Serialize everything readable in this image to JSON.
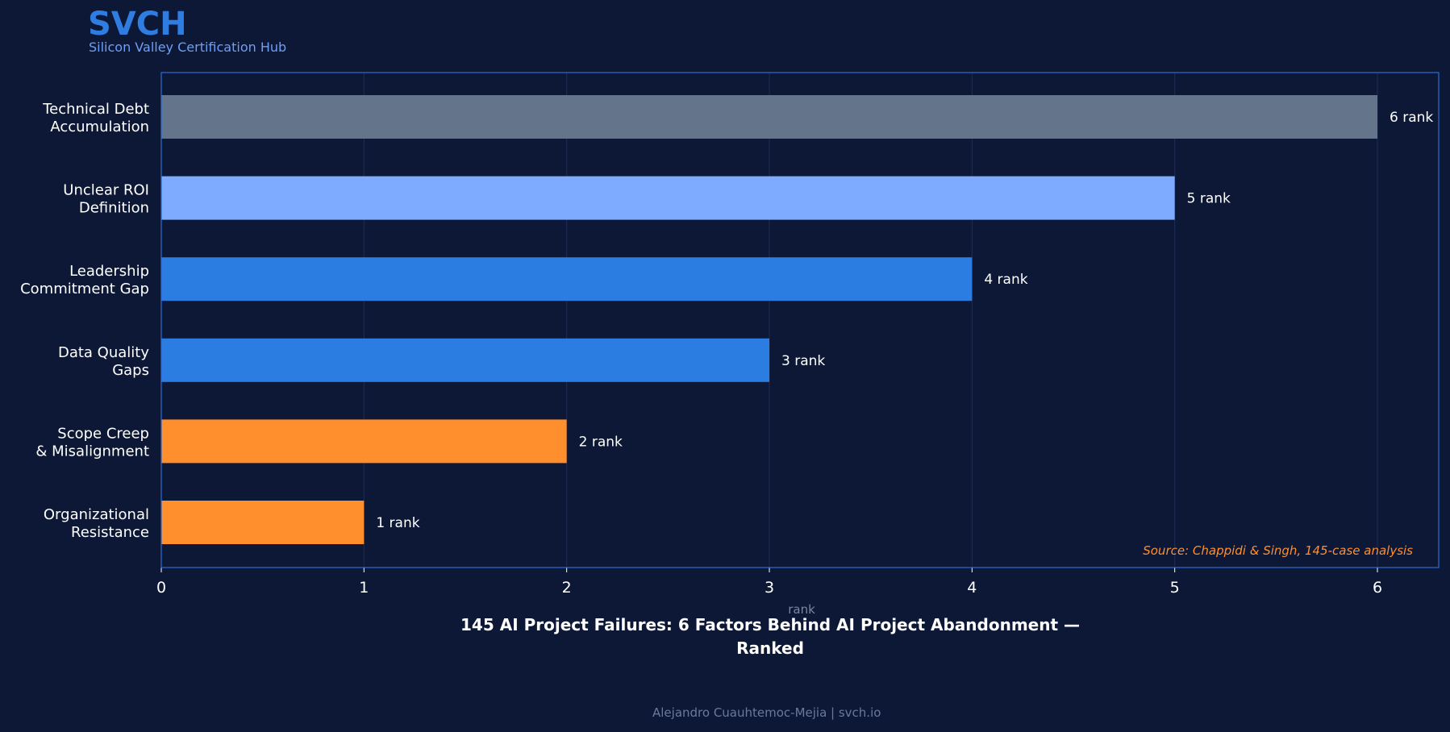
{
  "brand": {
    "name": "SVCH",
    "tagline": "Silicon Valley Certification Hub"
  },
  "footer": {
    "text": "Alejandro Cuauhtemoc-Mejia  |  svch.io"
  },
  "chart_data": {
    "type": "bar",
    "orientation": "horizontal",
    "title": "145 AI Project Failures: 6 Factors Behind AI Project Abandonment —\nRanked",
    "xlabel": "rank",
    "ylabel": "",
    "xlim": [
      0,
      6.3
    ],
    "xticks": [
      0,
      1,
      2,
      3,
      4,
      5,
      6
    ],
    "grid": "vertical",
    "annotation": "Source: Chappidi & Singh, 145-case analysis",
    "categories": [
      [
        "Technical Debt",
        "Accumulation"
      ],
      [
        "Unclear ROI",
        "Definition"
      ],
      [
        "Leadership",
        "Commitment Gap"
      ],
      [
        "Data Quality",
        "Gaps"
      ],
      [
        "Scope Creep",
        "& Misalignment"
      ],
      [
        "Organizational",
        "Resistance"
      ]
    ],
    "values": [
      6,
      5,
      4,
      3,
      2,
      1
    ],
    "value_labels": [
      "6 rank",
      "5 rank",
      "4 rank",
      "3 rank",
      "2 rank",
      "1 rank"
    ],
    "colors": [
      "#64748b",
      "#7eabff",
      "#2b7de1",
      "#2b7de1",
      "#ff8f2d",
      "#ff8f2d"
    ]
  },
  "colors": {
    "background": "#0c1836",
    "brand": "#2f7de1",
    "frame": "#2f6bd1",
    "grid": "#1f2d52",
    "annotation": "#ff8f2d",
    "axis_label": "#7a879f"
  }
}
